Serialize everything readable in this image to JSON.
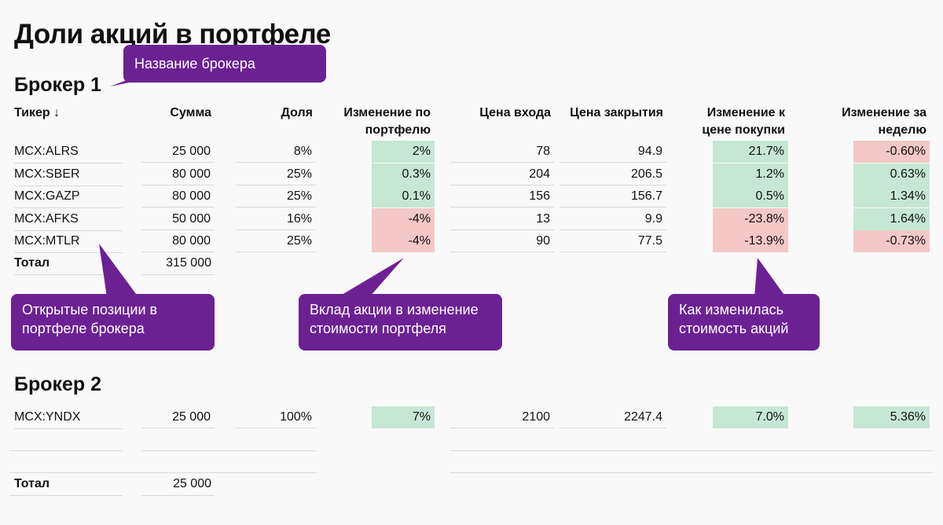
{
  "title": "Доли акций в портфеле",
  "headers": {
    "ticker": "Тикер ↓",
    "sum": "Сумма",
    "share": "Доля",
    "portfolio_change": "Изменение по портфелю",
    "entry_price": "Цена входа",
    "close_price": "Цена закрытия",
    "change_vs_buy": "Изменение к цене покупки",
    "weekly_change": "Изменение за неделю"
  },
  "broker1": {
    "name": "Брокер 1",
    "rows": [
      {
        "ticker": "MCX:ALRS",
        "sum": "25 000",
        "share": "8%",
        "portfolio_change": "2%",
        "entry": "78",
        "close": "94.9",
        "change_buy": "21.7%",
        "weekly": "-0.60%"
      },
      {
        "ticker": "MCX:SBER",
        "sum": "80 000",
        "share": "25%",
        "portfolio_change": "0.3%",
        "entry": "204",
        "close": "206.5",
        "change_buy": "1.2%",
        "weekly": "0.63%"
      },
      {
        "ticker": "MCX:GAZP",
        "sum": "80 000",
        "share": "25%",
        "portfolio_change": "0.1%",
        "entry": "156",
        "close": "156.7",
        "change_buy": "0.5%",
        "weekly": "1.34%"
      },
      {
        "ticker": "MCX:AFKS",
        "sum": "50 000",
        "share": "16%",
        "portfolio_change": "-4%",
        "entry": "13",
        "close": "9.9",
        "change_buy": "-23.8%",
        "weekly": "1.64%"
      },
      {
        "ticker": "MCX:MTLR",
        "sum": "80 000",
        "share": "25%",
        "portfolio_change": "-4%",
        "entry": "90",
        "close": "77.5",
        "change_buy": "-13.9%",
        "weekly": "-0.73%"
      }
    ],
    "total_label": "Тотал",
    "total_sum": "315 000"
  },
  "broker2": {
    "name": "Брокер 2",
    "rows": [
      {
        "ticker": "MCX:YNDX",
        "sum": "25 000",
        "share": "100%",
        "portfolio_change": "7%",
        "entry": "2100",
        "close": "2247.4",
        "change_buy": "7.0%",
        "weekly": "5.36%"
      }
    ],
    "total_label": "Тотал",
    "total_sum": "25 000"
  },
  "callouts": {
    "broker_name": "Название брокера",
    "open_positions": "Открытые позиции в портфеле брокера",
    "contribution": "Вклад акции в изменение стоимости портфеля",
    "price_change": "Как изменилась стоимость акций"
  },
  "colors": {
    "positive": "#c6e7d4",
    "negative": "#f3c8c6",
    "callout": "#6c2193"
  }
}
